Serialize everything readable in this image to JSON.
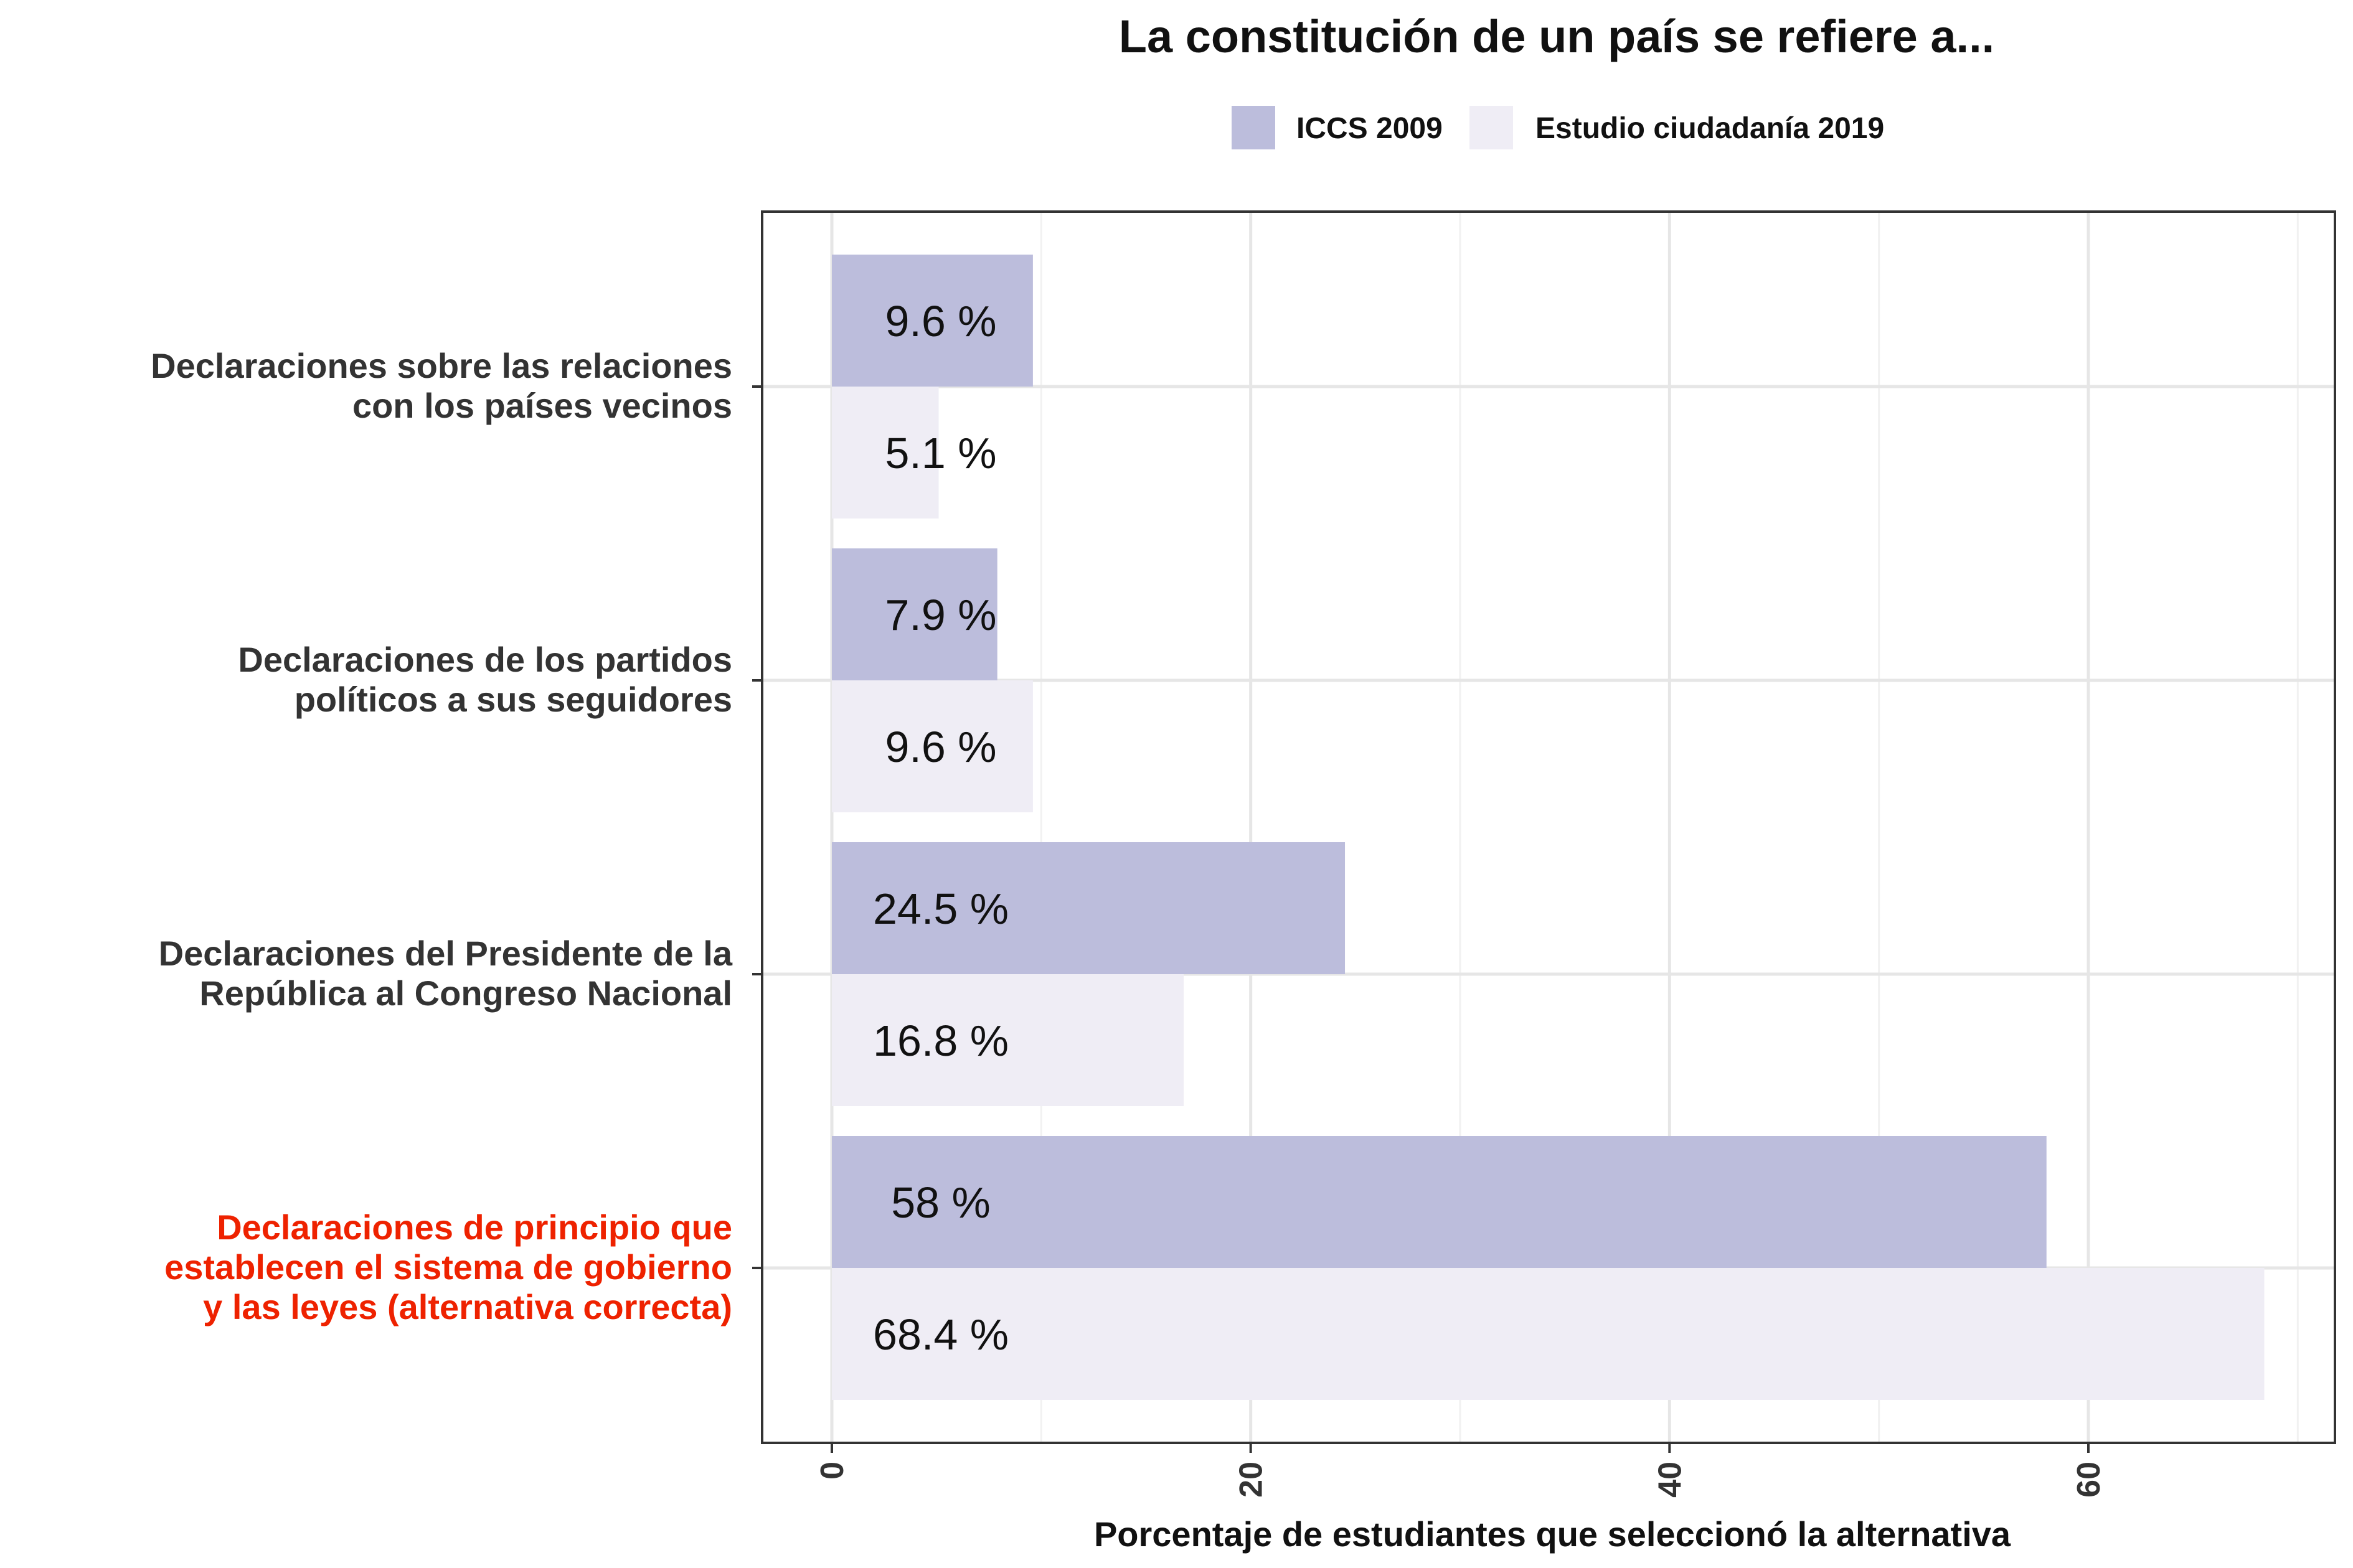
{
  "chart_data": {
    "type": "bar",
    "orientation": "horizontal",
    "title": "La constitución de un país se refiere a...",
    "xlabel": "Porcentaje de estudiantes que seleccionó la alternativa",
    "ylabel": "",
    "xlim": [
      0,
      71
    ],
    "xticks": [
      0,
      20,
      40,
      60
    ],
    "grid": true,
    "legend_position": "top",
    "categories": [
      {
        "lines": [
          "Declaraciones  sobre  las relaciones",
          "con los países  vecinos"
        ],
        "highlight": false
      },
      {
        "lines": [
          "Declaraciones  de los partidos",
          "políticos  a sus seguidores"
        ],
        "highlight": false
      },
      {
        "lines": [
          "Declaraciones  del Presidente  de la",
          "República  al Congreso  Nacional"
        ],
        "highlight": false
      },
      {
        "lines": [
          "Declaraciones  de principio que",
          "establecen  el sistema  de gobierno",
          "y las leyes  (alternativa  correcta)"
        ],
        "highlight": true
      }
    ],
    "series": [
      {
        "name": "ICCS 2009",
        "color": "#bcbddc",
        "values": [
          9.6,
          7.9,
          24.5,
          58
        ],
        "labels": [
          "9.6 %",
          "7.9 %",
          "24.5 %",
          "58 %"
        ]
      },
      {
        "name": "Estudio ciudadanía 2019",
        "color": "#efedf5",
        "values": [
          5.1,
          9.6,
          16.8,
          68.4
        ],
        "labels": [
          "5.1 %",
          "9.6 %",
          "16.8 %",
          "68.4 %"
        ]
      }
    ],
    "colors": {
      "highlight_label": "#ee2200",
      "default_label": "#333333"
    }
  }
}
